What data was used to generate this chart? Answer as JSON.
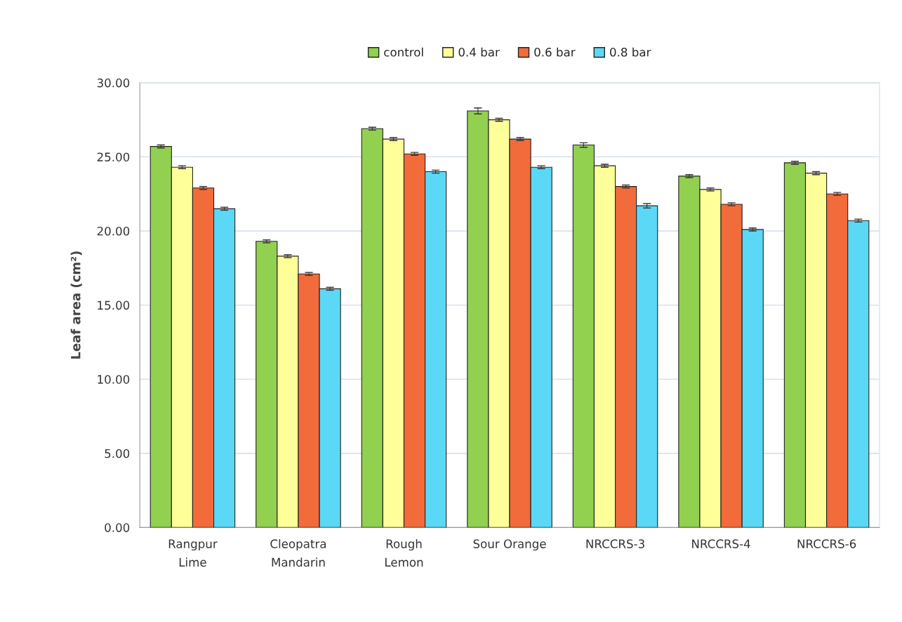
{
  "chart_data": {
    "type": "bar",
    "ylabel": "Leaf area (cm²)",
    "categories": [
      "Rangpur\nLime",
      "Cleopatra\nMandarin",
      "Rough\nLemon",
      "Sour Orange",
      "NRCCRS-3",
      "NRCCRS-4",
      "NRCCRS-6"
    ],
    "series": [
      {
        "name": "control",
        "color": "#92d050",
        "values": [
          25.7,
          19.3,
          26.9,
          28.1,
          25.8,
          23.7,
          24.6
        ],
        "errors": [
          0.1,
          0.1,
          0.1,
          0.2,
          0.15,
          0.1,
          0.1
        ]
      },
      {
        "name": "0.4 bar",
        "color": "#ffff99",
        "values": [
          24.3,
          18.3,
          26.2,
          27.5,
          24.4,
          22.8,
          23.9
        ],
        "errors": [
          0.1,
          0.1,
          0.1,
          0.1,
          0.1,
          0.1,
          0.1
        ]
      },
      {
        "name": "0.6 bar",
        "color": "#f26b3a",
        "values": [
          22.9,
          17.1,
          25.2,
          26.2,
          23.0,
          21.8,
          22.5
        ],
        "errors": [
          0.1,
          0.1,
          0.1,
          0.1,
          0.1,
          0.1,
          0.1
        ]
      },
      {
        "name": "0.8 bar",
        "color": "#5bd8f5",
        "values": [
          21.5,
          16.1,
          24.0,
          24.3,
          21.7,
          20.1,
          20.7
        ],
        "errors": [
          0.1,
          0.1,
          0.1,
          0.1,
          0.15,
          0.1,
          0.1
        ]
      }
    ],
    "ylim": [
      0,
      30
    ],
    "yticks": [
      {
        "value": 0,
        "label": "0.00"
      },
      {
        "value": 5,
        "label": "5.00"
      },
      {
        "value": 10,
        "label": "10.00"
      },
      {
        "value": 15,
        "label": "15.00"
      },
      {
        "value": 20,
        "label": "20.00"
      },
      {
        "value": 25,
        "label": "25.00"
      },
      {
        "value": 30,
        "label": "30.00"
      }
    ],
    "grid": "y",
    "legend": "top"
  }
}
